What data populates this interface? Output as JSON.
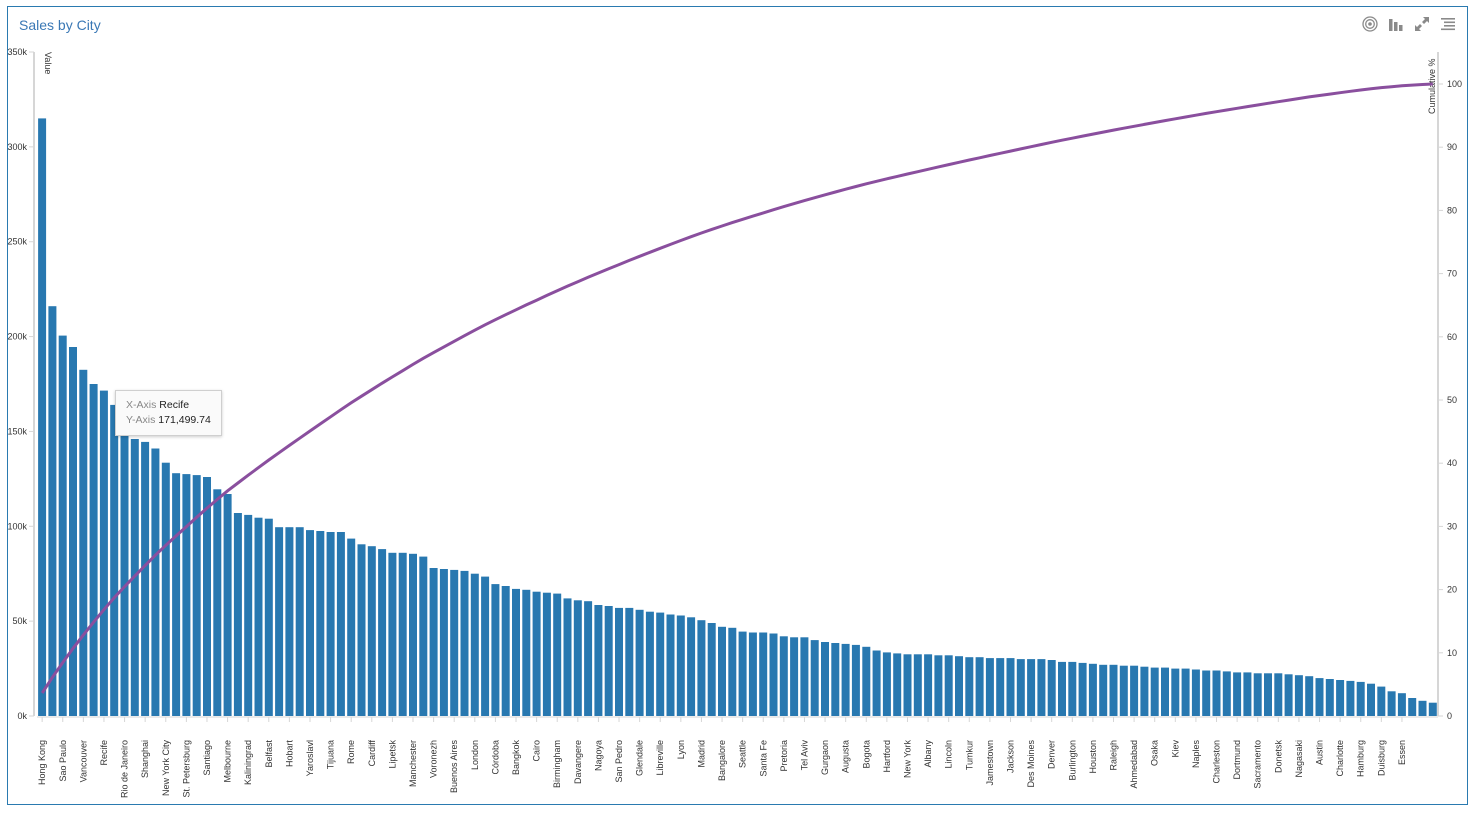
{
  "panel": {
    "title": "Sales by City",
    "toolbar": [
      {
        "name": "target-icon",
        "label": "Target"
      },
      {
        "name": "bar-chart-icon",
        "label": "Chart type"
      },
      {
        "name": "expand-icon",
        "label": "Maximize"
      },
      {
        "name": "menu-icon",
        "label": "Menu"
      }
    ]
  },
  "tooltip": {
    "x_key": "X-Axis",
    "x_value": "Recife",
    "y_key": "Y-Axis",
    "y_value": "171,499.74"
  },
  "colors": {
    "bar": "#2878b0",
    "line": "#8a4f9e",
    "title": "#3a78b5",
    "border": "#2a7ab0",
    "axis": "#d6d6d6"
  },
  "chart_data": {
    "type": "bar",
    "title": "Sales by City",
    "xlabel": "",
    "ylabel": "Value",
    "y2label": "Cumulative %",
    "ylim": [
      0,
      350000
    ],
    "y2lim": [
      0,
      100
    ],
    "yticks": [
      "0k",
      "50k",
      "100k",
      "150k",
      "200k",
      "250k",
      "300k",
      "350k"
    ],
    "y2ticks": [
      "0",
      "10",
      "20",
      "30",
      "40",
      "50",
      "60",
      "70",
      "80",
      "90",
      "100"
    ],
    "grid": false,
    "legend": "none",
    "labeled_categories": [
      "Hong Kong",
      "Sao Paulo",
      "Vancouver",
      "Recife",
      "Rio de Janeiro",
      "Shanghai",
      "New York City",
      "St. Petersburg",
      "Santiago",
      "Melbourne",
      "Kaliningrad",
      "Belfast",
      "Hobart",
      "Yaroslavl",
      "Tijuana",
      "Rome",
      "Cardiff",
      "Lipetsk",
      "Manchester",
      "Voronezh",
      "Buenos Aires",
      "London",
      "Córdoba",
      "Bangkok",
      "Cairo",
      "Birmingham",
      "Davangere",
      "Nagoya",
      "San Pedro",
      "Glendale",
      "Libreville",
      "Lyon",
      "Madrid",
      "Bangalore",
      "Seattle",
      "Santa Fe",
      "Pretoria",
      "Tel Aviv",
      "Gurgaon",
      "Augusta",
      "Bogota",
      "Hartford",
      "New York",
      "Albany",
      "Lincoln",
      "Tumkur",
      "Jamestown",
      "Jackson",
      "Des Moines",
      "Denver",
      "Burlington",
      "Houston",
      "Raleigh",
      "Ahmedabad",
      "Osaka",
      "Kiev",
      "Naples",
      "Charleston",
      "Dortmund",
      "Sacramento",
      "Donetsk",
      "Nagasaki",
      "Austin",
      "Charlotte",
      "Hamburg",
      "Duisburg",
      "Essen"
    ],
    "label_every": 2,
    "values": [
      315000,
      216000,
      200500,
      194500,
      182500,
      175000,
      171499.74,
      164000,
      150000,
      146000,
      144500,
      141000,
      133500,
      128000,
      127500,
      127000,
      126000,
      119500,
      117000,
      107000,
      106000,
      104500,
      104000,
      99500,
      99500,
      99500,
      98000,
      97500,
      97000,
      97000,
      93500,
      90500,
      89500,
      88000,
      86000,
      86000,
      85500,
      84000,
      78000,
      77500,
      77000,
      76500,
      75000,
      73500,
      69500,
      68500,
      67000,
      66500,
      65500,
      65000,
      64500,
      62000,
      61000,
      60500,
      58500,
      58000,
      57000,
      57000,
      56000,
      55000,
      54500,
      53500,
      53000,
      52000,
      50500,
      49000,
      47000,
      46500,
      44500,
      44000,
      44000,
      43500,
      42000,
      41500,
      41500,
      40000,
      39000,
      38500,
      38000,
      37500,
      36500,
      34500,
      33500,
      33000,
      32500,
      32500,
      32500,
      32000,
      32000,
      31500,
      31000,
      31000,
      30500,
      30500,
      30500,
      30000,
      30000,
      30000,
      29500,
      28500,
      28500,
      28000,
      27500,
      27000,
      27000,
      26500,
      26500,
      26000,
      25500,
      25500,
      25000,
      25000,
      24500,
      24000,
      24000,
      23500,
      23000,
      23000,
      22500,
      22500,
      22500,
      22000,
      21500,
      21000,
      20000,
      19500,
      19000,
      18500,
      18000,
      17000,
      15500,
      13000,
      12000,
      9500,
      8000,
      7000
    ]
  }
}
